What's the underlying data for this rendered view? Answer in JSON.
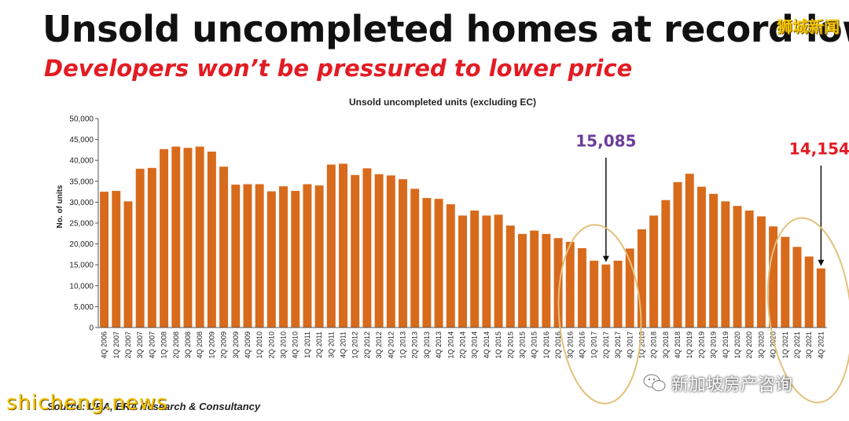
{
  "headline": "Unsold uncompleted homes at record low",
  "subheadline": "Developers won’t be pressured to lower price",
  "watermark_top": "狮城新闻",
  "watermark_bottom": "shicheng.news",
  "wechat_account": "新加坡房产咨询",
  "source_note": "Source: URA, ERA Research & Consultancy",
  "colors": {
    "bar": "#d86a1c",
    "annotation_purple": "#6a3d9a",
    "annotation_red": "#e31b23",
    "circle": "#e3c07a",
    "title_red": "#e31b23"
  },
  "chart_data": {
    "type": "bar",
    "title": "Unsold uncompleted units (excluding EC)",
    "ylabel": "No. of units",
    "xlabel": "",
    "ylim": [
      0,
      50000
    ],
    "yticks": [
      "0",
      "5,000",
      "10,000",
      "15,000",
      "20,000",
      "25,000",
      "30,000",
      "35,000",
      "40,000",
      "45,000",
      "50,000"
    ],
    "grid": false,
    "categories": [
      "4Q 2006",
      "1Q 2007",
      "2Q 2007",
      "3Q 2007",
      "4Q 2007",
      "1Q 2008",
      "2Q 2008",
      "3Q 2008",
      "4Q 2008",
      "1Q 2009",
      "2Q 2009",
      "3Q 2009",
      "4Q 2009",
      "1Q 2010",
      "2Q 2010",
      "3Q 2010",
      "4Q 2010",
      "1Q 2011",
      "2Q 2011",
      "3Q 2011",
      "4Q 2011",
      "1Q 2012",
      "2Q 2012",
      "3Q 2012",
      "4Q 2012",
      "1Q 2013",
      "2Q 2013",
      "3Q 2013",
      "4Q 2013",
      "1Q 2014",
      "2Q 2014",
      "3Q 2014",
      "4Q 2014",
      "1Q 2015",
      "2Q 2015",
      "3Q 2015",
      "4Q 2015",
      "1Q 2016",
      "2Q 2016",
      "3Q 2016",
      "4Q 2016",
      "1Q 2017",
      "2Q 2017",
      "3Q 2017",
      "4Q 2017",
      "1Q 2018",
      "2Q 2018",
      "3Q 2018",
      "4Q 2018",
      "1Q 2019",
      "2Q 2019",
      "3Q 2019",
      "4Q 2019",
      "1Q 2020",
      "2Q 2020",
      "3Q 2020",
      "4Q 2020",
      "1Q 2021",
      "2Q 2021",
      "3Q 2021",
      "4Q 2021"
    ],
    "values": [
      32500,
      32700,
      30200,
      38000,
      38200,
      42700,
      43300,
      43000,
      43300,
      42100,
      38500,
      34200,
      34300,
      34300,
      32600,
      33800,
      32700,
      34300,
      34000,
      39000,
      39200,
      36500,
      38100,
      36700,
      36400,
      35500,
      33200,
      31000,
      30800,
      29500,
      26800,
      28000,
      26800,
      27000,
      24400,
      22400,
      23200,
      22400,
      21400,
      20500,
      19000,
      16000,
      15085,
      16000,
      18900,
      23500,
      26800,
      30500,
      34800,
      36800,
      33700,
      32000,
      30200,
      29100,
      28000,
      26600,
      24200,
      21700,
      19300,
      17000,
      14154
    ],
    "annotations": [
      {
        "label": "15,085",
        "category": "2Q 2017",
        "value": 15085,
        "color": "purple"
      },
      {
        "label": "14,154",
        "category": "4Q 2021",
        "value": 14154,
        "color": "red"
      }
    ]
  }
}
